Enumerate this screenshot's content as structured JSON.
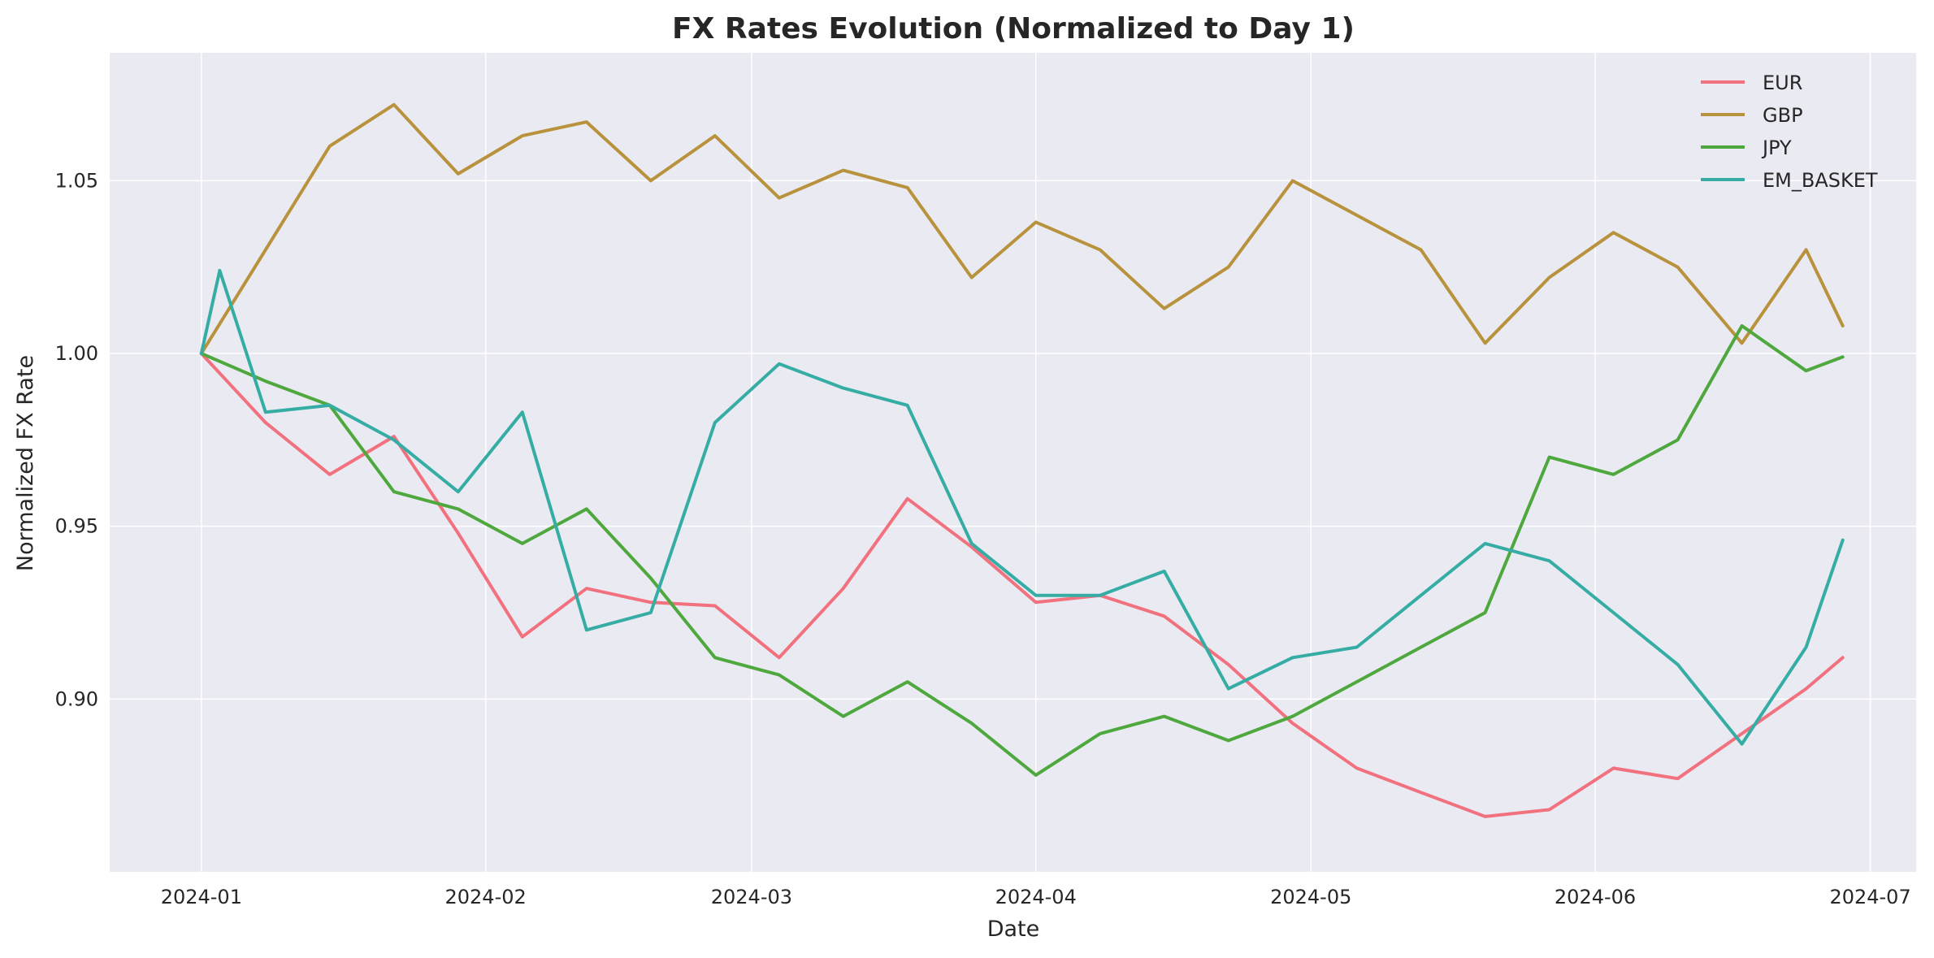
{
  "chart_data": {
    "type": "line",
    "title": "FX Rates Evolution (Normalized to Day 1)",
    "xlabel": "Date",
    "ylabel": "Normalized FX Rate",
    "x_range": [
      "2023-12-22",
      "2024-07-06"
    ],
    "ylim": [
      0.85,
      1.087
    ],
    "x_ticks": [
      {
        "date": "2024-01-01",
        "label": "2024-01"
      },
      {
        "date": "2024-02-01",
        "label": "2024-02"
      },
      {
        "date": "2024-03-01",
        "label": "2024-03"
      },
      {
        "date": "2024-04-01",
        "label": "2024-04"
      },
      {
        "date": "2024-05-01",
        "label": "2024-05"
      },
      {
        "date": "2024-06-01",
        "label": "2024-06"
      },
      {
        "date": "2024-07-01",
        "label": "2024-07"
      }
    ],
    "y_ticks": [
      {
        "value": 0.9,
        "label": "0.90"
      },
      {
        "value": 0.95,
        "label": "0.95"
      },
      {
        "value": 1.0,
        "label": "1.00"
      },
      {
        "value": 1.05,
        "label": "1.05"
      }
    ],
    "grid": true,
    "legend_position": "top-right",
    "background_color": "#eaeaf2",
    "series": [
      {
        "name": "EUR",
        "color": "#f2717f",
        "points": [
          [
            "2024-01-01",
            1.0
          ],
          [
            "2024-01-08",
            0.98
          ],
          [
            "2024-01-15",
            0.965
          ],
          [
            "2024-01-22",
            0.976
          ],
          [
            "2024-01-29",
            0.948
          ],
          [
            "2024-02-05",
            0.918
          ],
          [
            "2024-02-12",
            0.932
          ],
          [
            "2024-02-19",
            0.928
          ],
          [
            "2024-02-26",
            0.927
          ],
          [
            "2024-03-04",
            0.912
          ],
          [
            "2024-03-11",
            0.932
          ],
          [
            "2024-03-18",
            0.958
          ],
          [
            "2024-03-25",
            0.944
          ],
          [
            "2024-04-01",
            0.928
          ],
          [
            "2024-04-08",
            0.93
          ],
          [
            "2024-04-15",
            0.924
          ],
          [
            "2024-04-22",
            0.91
          ],
          [
            "2024-04-29",
            0.893
          ],
          [
            "2024-05-06",
            0.88
          ],
          [
            "2024-05-13",
            0.873
          ],
          [
            "2024-05-20",
            0.866
          ],
          [
            "2024-05-27",
            0.868
          ],
          [
            "2024-06-03",
            0.88
          ],
          [
            "2024-06-10",
            0.877
          ],
          [
            "2024-06-17",
            0.89
          ],
          [
            "2024-06-24",
            0.903
          ],
          [
            "2024-06-28",
            0.912
          ]
        ]
      },
      {
        "name": "GBP",
        "color": "#b8923c",
        "points": [
          [
            "2024-01-01",
            1.0
          ],
          [
            "2024-01-08",
            1.03
          ],
          [
            "2024-01-15",
            1.06
          ],
          [
            "2024-01-22",
            1.072
          ],
          [
            "2024-01-29",
            1.052
          ],
          [
            "2024-02-05",
            1.063
          ],
          [
            "2024-02-12",
            1.067
          ],
          [
            "2024-02-19",
            1.05
          ],
          [
            "2024-02-26",
            1.063
          ],
          [
            "2024-03-04",
            1.045
          ],
          [
            "2024-03-11",
            1.053
          ],
          [
            "2024-03-18",
            1.048
          ],
          [
            "2024-03-25",
            1.022
          ],
          [
            "2024-04-01",
            1.038
          ],
          [
            "2024-04-08",
            1.03
          ],
          [
            "2024-04-15",
            1.013
          ],
          [
            "2024-04-22",
            1.025
          ],
          [
            "2024-04-29",
            1.05
          ],
          [
            "2024-05-06",
            1.04
          ],
          [
            "2024-05-13",
            1.03
          ],
          [
            "2024-05-20",
            1.003
          ],
          [
            "2024-05-27",
            1.022
          ],
          [
            "2024-06-03",
            1.035
          ],
          [
            "2024-06-10",
            1.025
          ],
          [
            "2024-06-17",
            1.003
          ],
          [
            "2024-06-24",
            1.03
          ],
          [
            "2024-06-28",
            1.008
          ]
        ]
      },
      {
        "name": "JPY",
        "color": "#4ea83d",
        "points": [
          [
            "2024-01-01",
            1.0
          ],
          [
            "2024-01-08",
            0.992
          ],
          [
            "2024-01-15",
            0.985
          ],
          [
            "2024-01-22",
            0.96
          ],
          [
            "2024-01-29",
            0.955
          ],
          [
            "2024-02-05",
            0.945
          ],
          [
            "2024-02-12",
            0.955
          ],
          [
            "2024-02-19",
            0.935
          ],
          [
            "2024-02-26",
            0.912
          ],
          [
            "2024-03-04",
            0.907
          ],
          [
            "2024-03-11",
            0.895
          ],
          [
            "2024-03-18",
            0.905
          ],
          [
            "2024-03-25",
            0.893
          ],
          [
            "2024-04-01",
            0.878
          ],
          [
            "2024-04-08",
            0.89
          ],
          [
            "2024-04-15",
            0.895
          ],
          [
            "2024-04-22",
            0.888
          ],
          [
            "2024-04-29",
            0.895
          ],
          [
            "2024-05-06",
            0.905
          ],
          [
            "2024-05-13",
            0.915
          ],
          [
            "2024-05-20",
            0.925
          ],
          [
            "2024-05-27",
            0.97
          ],
          [
            "2024-06-03",
            0.965
          ],
          [
            "2024-06-10",
            0.975
          ],
          [
            "2024-06-17",
            1.008
          ],
          [
            "2024-06-24",
            0.995
          ],
          [
            "2024-06-28",
            0.999
          ]
        ]
      },
      {
        "name": "EM_BASKET",
        "color": "#36ada4",
        "points": [
          [
            "2024-01-01",
            1.0
          ],
          [
            "2024-01-03",
            1.024
          ],
          [
            "2024-01-08",
            0.983
          ],
          [
            "2024-01-15",
            0.985
          ],
          [
            "2024-01-22",
            0.975
          ],
          [
            "2024-01-29",
            0.96
          ],
          [
            "2024-02-05",
            0.983
          ],
          [
            "2024-02-12",
            0.92
          ],
          [
            "2024-02-19",
            0.925
          ],
          [
            "2024-02-26",
            0.98
          ],
          [
            "2024-03-04",
            0.997
          ],
          [
            "2024-03-11",
            0.99
          ],
          [
            "2024-03-18",
            0.985
          ],
          [
            "2024-03-25",
            0.945
          ],
          [
            "2024-04-01",
            0.93
          ],
          [
            "2024-04-08",
            0.93
          ],
          [
            "2024-04-15",
            0.937
          ],
          [
            "2024-04-22",
            0.903
          ],
          [
            "2024-04-29",
            0.912
          ],
          [
            "2024-05-06",
            0.915
          ],
          [
            "2024-05-13",
            0.93
          ],
          [
            "2024-05-20",
            0.945
          ],
          [
            "2024-05-27",
            0.94
          ],
          [
            "2024-06-03",
            0.925
          ],
          [
            "2024-06-10",
            0.91
          ],
          [
            "2024-06-17",
            0.887
          ],
          [
            "2024-06-24",
            0.915
          ],
          [
            "2024-06-28",
            0.946
          ]
        ]
      }
    ]
  }
}
